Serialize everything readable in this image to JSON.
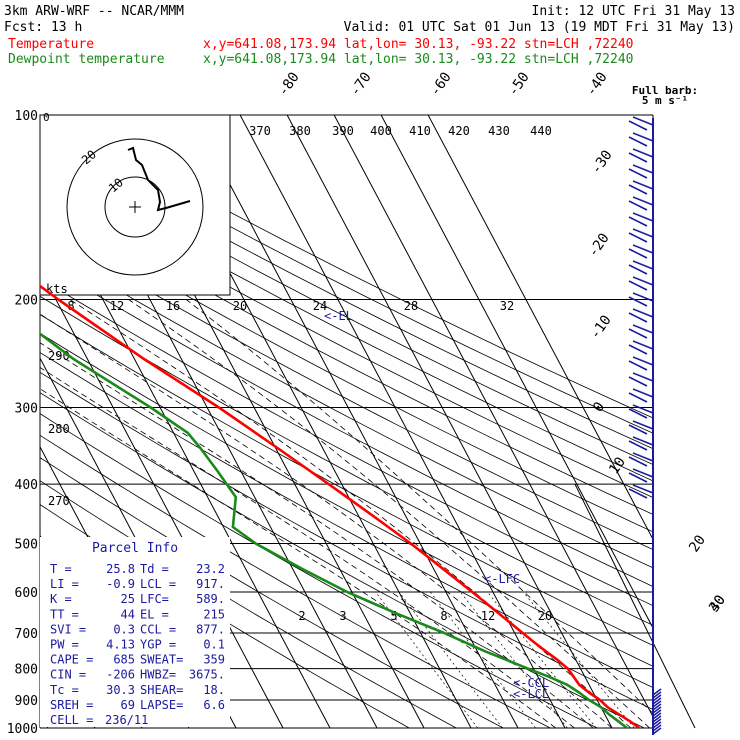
{
  "header": {
    "left_line1": "3km ARW-WRF -- NCAR/MMM",
    "left_line2": "Fcst:   13 h",
    "right_line1": "Init: 12 UTC Fri 31 May 13",
    "right_line2": "Valid: 01 UTC Sat 01 Jun 13 (19 MDT Fri 31 May 13)",
    "temp_label": "Temperature",
    "dew_label": "Dewpoint temperature",
    "temp_loc": "x,y=641.08,173.94   lat,lon= 30.13, -93.22  stn=LCH ,72240",
    "dew_loc": "x,y=641.08,173.94   lat,lon= 30.13, -93.22  stn=LCH ,72240"
  },
  "colors": {
    "temperature": "#ff0000",
    "dewpoint": "#1a8a1a",
    "text_red": "#ff0000",
    "text_green": "#1a8a1a",
    "text_blue": "#1a1aa0",
    "barb": "#1a1aa0"
  },
  "wind": {
    "full_barb_label": "Full barb:",
    "full_barb_value": "5 m s⁻¹"
  },
  "parcel_info": {
    "title": "Parcel Info",
    "rows": [
      [
        "T  =",
        "25.8",
        "Td =",
        "23.2"
      ],
      [
        "LI =",
        "-0.9",
        "LCL =",
        "917."
      ],
      [
        "K  =",
        "25",
        "LFC=",
        "589."
      ],
      [
        "TT =",
        "44",
        "EL =",
        "215"
      ],
      [
        "SVI =",
        "0.3",
        "CCL =",
        "877."
      ],
      [
        "PW =",
        "4.13",
        "YGP =",
        "0.1"
      ],
      [
        "CAPE =",
        "685",
        "SWEAT=",
        "359"
      ],
      [
        "CIN =",
        "-206",
        "HWBZ=",
        "3675."
      ],
      [
        "Tc =",
        "30.3",
        "SHEAR=",
        "18."
      ],
      [
        "SREH =",
        "69",
        "LAPSE=",
        "6.6"
      ],
      [
        "CELL =",
        "236/11",
        "",
        ""
      ]
    ]
  },
  "markers": {
    "el": "<-EL",
    "lfc": "<-LFC",
    "ccl": "<-CCL",
    "lcl": "<-LCL"
  },
  "hodograph": {
    "unit_label": "kts",
    "ring_labels": [
      "20",
      "10"
    ],
    "speed_ticks": [
      "8",
      "12",
      "16",
      "20",
      "24",
      "28",
      "32"
    ]
  },
  "chart_data": {
    "type": "line",
    "title": "",
    "xlabel": "",
    "ylabel": "",
    "pressure_levels": [
      "100",
      "200",
      "300",
      "400",
      "500",
      "600",
      "700",
      "800",
      "900",
      "1000"
    ],
    "pressure_range": [
      100,
      1000
    ],
    "y_scale": "log",
    "temperature_axis_labels": [
      "-80",
      "-70",
      "-60",
      "-50",
      "-40",
      "-30",
      "-20",
      "-10",
      "0",
      "10",
      "20",
      "30",
      "40"
    ],
    "theta_labels": [
      "370",
      "380",
      "390",
      "400",
      "410",
      "420",
      "430",
      "440"
    ],
    "theta_labels_left": [
      "290",
      "280",
      "270"
    ],
    "mixing_ratio_labels": [
      "2",
      "3",
      "5",
      "8",
      "12",
      "20"
    ],
    "series": [
      {
        "name": "Temperature",
        "color": "#ff0000",
        "points": [
          [
            1000,
            25.8
          ],
          [
            975,
            24.6
          ],
          [
            950,
            23.0
          ],
          [
            925,
            21.4
          ],
          [
            900,
            20.6
          ],
          [
            875,
            19.1
          ],
          [
            850,
            17.9
          ],
          [
            825,
            17.6
          ],
          [
            800,
            17.3
          ],
          [
            775,
            16.1
          ],
          [
            750,
            14.6
          ],
          [
            725,
            13.1
          ],
          [
            700,
            11.7
          ],
          [
            650,
            8.8
          ],
          [
            600,
            5.6
          ],
          [
            550,
            2.0
          ],
          [
            500,
            -2.0
          ],
          [
            450,
            -7.0
          ],
          [
            400,
            -12.8
          ],
          [
            350,
            -19.5
          ],
          [
            300,
            -27.5
          ],
          [
            250,
            -38.0
          ],
          [
            200,
            -49.5
          ],
          [
            150,
            -63.0
          ],
          [
            125,
            -70.5
          ],
          [
            100,
            -75.0
          ]
        ]
      },
      {
        "name": "Dewpoint temperature",
        "color": "#1a8a1a",
        "points": [
          [
            1000,
            23.2
          ],
          [
            975,
            22.1
          ],
          [
            950,
            20.9
          ],
          [
            925,
            20.0
          ],
          [
            900,
            18.3
          ],
          [
            875,
            17.0
          ],
          [
            850,
            15.3
          ],
          [
            825,
            12.4
          ],
          [
            800,
            8.8
          ],
          [
            775,
            5.3
          ],
          [
            750,
            1.7
          ],
          [
            700,
            -5.0
          ],
          [
            650,
            -13.0
          ],
          [
            600,
            -21.0
          ],
          [
            550,
            -28.0
          ],
          [
            500,
            -35.0
          ],
          [
            470,
            -38.0
          ],
          [
            420,
            -34.0
          ],
          [
            380,
            -35.0
          ],
          [
            350,
            -36.0
          ],
          [
            330,
            -37.0
          ],
          [
            300,
            -42.0
          ],
          [
            250,
            -53.0
          ],
          [
            200,
            -63.0
          ],
          [
            160,
            -68.0
          ],
          [
            130,
            -74.0
          ],
          [
            100,
            -82.0
          ]
        ]
      }
    ]
  }
}
